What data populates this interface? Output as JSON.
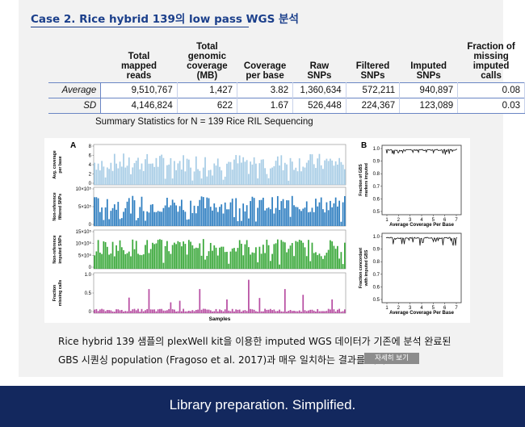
{
  "heading": "Case 2. Rice hybrid 139의 low pass WGS 분석",
  "table": {
    "columns": [
      "",
      "Total\nmapped\nreads",
      "Total\ngenomic\ncoverage\n(MB)",
      "Coverage\nper base",
      "Raw\nSNPs",
      "Filtered\nSNPs",
      "Imputed\nSNPs",
      "Fraction of\nmissing\nimputed\ncalls"
    ],
    "rows": [
      [
        "Average",
        "9,510,767",
        "1,427",
        "3.82",
        "1,360,634",
        "572,211",
        "940,897",
        "0.08"
      ],
      [
        "SD",
        "4,146,824",
        "622",
        "1.67",
        "526,448",
        "224,367",
        "123,089",
        "0.03"
      ]
    ]
  },
  "table_caption": "Summary Statistics for N = 139 Rice RIL Sequencing",
  "figure": {
    "panel_a_letter": "A",
    "panel_b_letter": "B",
    "a_rows": [
      {
        "ylabel": [
          "Avg. coverage",
          "per base"
        ],
        "ticks": [
          "8",
          "6",
          "4",
          "2",
          "0"
        ],
        "color": "#a8cde6",
        "max": 8
      },
      {
        "ylabel": [
          "Non-reference",
          "filtered SNPs"
        ],
        "ticks": [
          "10×10⁵",
          "5×10⁵",
          "0"
        ],
        "color": "#2f7fc1",
        "max": 12
      },
      {
        "ylabel": [
          "Non-reference",
          "imputed SNPs"
        ],
        "ticks": [
          "15×10⁵",
          "10×10⁵",
          "5×10⁵",
          "0"
        ],
        "color": "#3aa83a",
        "max": 16
      },
      {
        "ylabel": [
          "Fraction",
          "missing calls"
        ],
        "ticks": [
          "1.0",
          "0.5",
          "0"
        ],
        "color": "#b84fa3",
        "max": 1
      }
    ],
    "a_xlabel": "Samples",
    "b_plots": [
      {
        "ylabel": [
          "Fraction of GBS",
          "markers imputed"
        ],
        "ticks": [
          "1.0",
          "0.9",
          "0.8",
          "0.7",
          "0.6",
          "0.5"
        ]
      },
      {
        "ylabel": [
          "Fraction concordant",
          "with imputed GBS"
        ],
        "ticks": [
          "1.0",
          "0.9",
          "0.8",
          "0.7",
          "0.6",
          "0.5"
        ]
      }
    ],
    "b_xticks": [
      "1",
      "2",
      "3",
      "4",
      "5",
      "6",
      "7"
    ],
    "b_xlabel": "Average Coverage Per Base"
  },
  "description": {
    "line1": "Rice hybrid 139 샘플의 plexWell kit을 이용한 imputed WGS 데이터가 기존에 분석 완료된",
    "line2": "GBS 시퀀싱 population (Fragoso et al. 2017)과 매우 일치하는 결과를 나타냄"
  },
  "more_button": "자세히 보기",
  "footer": "Library preparation. Simplified."
}
